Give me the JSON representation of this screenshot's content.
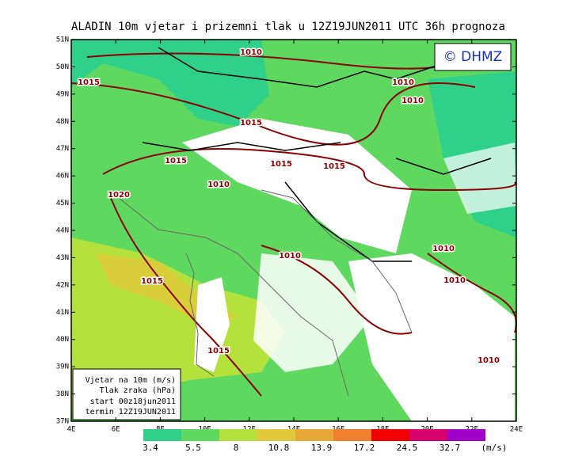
{
  "title": "ALADIN 10m vjetar i prizemni tlak u 12Z19JUN2011 UTC 36h prognoza",
  "copyright": "© DHMZ",
  "lat_labels": [
    "51N",
    "50N",
    "49N",
    "48N",
    "47N",
    "46N",
    "45N",
    "44N",
    "43N",
    "42N",
    "41N",
    "40N",
    "39N",
    "38N",
    "37N"
  ],
  "lon_labels": [
    "4E",
    "6E",
    "8E",
    "10E",
    "12E",
    "14E",
    "16E",
    "18E",
    "20E",
    "22E",
    "24E"
  ],
  "legend": {
    "colors": [
      "#2fd08a",
      "#5fd85f",
      "#b4e13c",
      "#e2c83a",
      "#e8a838",
      "#f08030",
      "#f00000",
      "#d8006a",
      "#a000c8"
    ],
    "values": [
      "3.4",
      "5.5",
      "8",
      "10.8",
      "13.9",
      "17.2",
      "24.5",
      "32.7"
    ],
    "unit": "(m/s)"
  },
  "info_box": [
    "Vjetar na 10m (m/s)",
    "Tlak zraka (hPa)",
    "start 00z18jun2011",
    "termin 12Z19JUN2011"
  ],
  "isobars": [
    "1010",
    "1015",
    "1010",
    "1010",
    "1015",
    "1015",
    "1015",
    "1015",
    "1010",
    "1020",
    "1010",
    "1010",
    "1015",
    "1010",
    "1015",
    "1010"
  ]
}
